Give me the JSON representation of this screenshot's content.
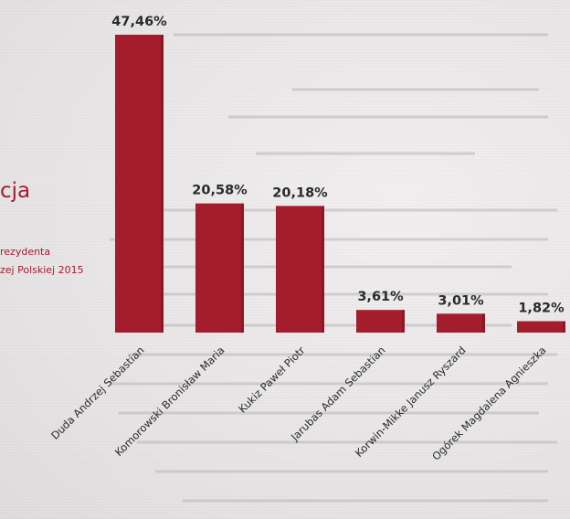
{
  "side": {
    "heading": "cja",
    "subtitle_line1": "rezydenta",
    "subtitle_line2": "zej Polskiej 2015"
  },
  "colors": {
    "bar": "#a31d2d",
    "bar_shadow": "#7e1322",
    "text": "#2a2a2a"
  },
  "chart_data": {
    "type": "bar",
    "categories": [
      "Duda Andrzej Sebastian",
      "Komorowski Bronisław Maria",
      "Kukiz Paweł Piotr",
      "Jarubas Adam Sebastian",
      "Korwin-Mikke Janusz Ryszard",
      "Ogórek Magdalena Agnieszka"
    ],
    "values": [
      47.46,
      20.58,
      20.18,
      3.61,
      3.01,
      1.82
    ],
    "data_labels": [
      "47,46%",
      "20,58%",
      "20,18%",
      "3,61%",
      "3,01%",
      "1,82%"
    ],
    "ylim": [
      0,
      50
    ],
    "grid": false,
    "legend": "none",
    "tick_rotation": "diagonal"
  }
}
